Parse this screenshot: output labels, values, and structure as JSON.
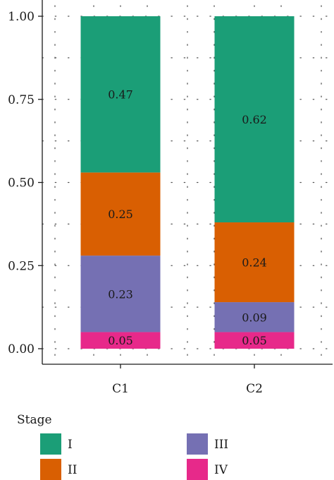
{
  "chart_data": {
    "type": "bar",
    "stacked": true,
    "categories": [
      "C1",
      "C2"
    ],
    "series": [
      {
        "name": "I",
        "color": "#1b9e77",
        "values": [
          0.47,
          0.62
        ]
      },
      {
        "name": "II",
        "color": "#d95f02",
        "values": [
          0.25,
          0.24
        ]
      },
      {
        "name": "III",
        "color": "#7570b3",
        "values": [
          0.23,
          0.09
        ]
      },
      {
        "name": "IV",
        "color": "#e7298a",
        "values": [
          0.05,
          0.05
        ]
      }
    ],
    "segment_labels": [
      [
        "0.47",
        "0.25",
        "0.23",
        "0.05"
      ],
      [
        "0.62",
        "0.24",
        "0.09",
        "0.05"
      ]
    ],
    "y_ticks": [
      "0.00",
      "0.25",
      "0.50",
      "0.75",
      "1.00"
    ],
    "ylim": [
      0,
      1
    ],
    "grid": "dotted",
    "title": "",
    "xlabel": "",
    "ylabel": "",
    "legend": {
      "title": "Stage",
      "position": "bottom",
      "items": [
        "I",
        "II",
        "III",
        "IV"
      ]
    }
  }
}
